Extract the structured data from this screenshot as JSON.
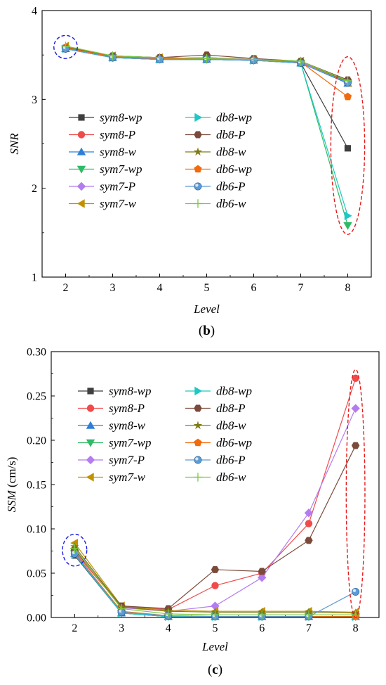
{
  "chart_data": [
    {
      "type": "line",
      "panel_label": "(b)",
      "panel_label_parts": [
        "(",
        "b",
        ")"
      ],
      "xlabel": "Level",
      "ylabel": "SNR",
      "ylabel_unit": "",
      "x": [
        2,
        3,
        4,
        5,
        6,
        7,
        8
      ],
      "xlim": [
        1.5,
        8.5
      ],
      "ylim": [
        1,
        4
      ],
      "xticks": [
        "2",
        "3",
        "4",
        "5",
        "6",
        "7",
        "8"
      ],
      "yticks": [
        "1",
        "2",
        "3",
        "4"
      ],
      "ytick_values": [
        1,
        2,
        3,
        4
      ],
      "legend_position": "center-left",
      "highlights": [
        {
          "style": "blue-dashed-ellipse",
          "center": [
            2,
            3.59
          ],
          "radius_data": [
            0.25,
            0.13
          ]
        },
        {
          "style": "red-dashed-ellipse",
          "center": [
            8,
            2.48
          ],
          "radius_data": [
            0.36,
            1.0
          ]
        }
      ],
      "series": [
        {
          "name": "sym8-wp",
          "color": "#3f3f3f",
          "marker": "square",
          "values": [
            3.57,
            3.47,
            3.45,
            3.45,
            3.44,
            3.41,
            2.45
          ]
        },
        {
          "name": "sym8-P",
          "color": "#f04a4a",
          "marker": "circle",
          "values": [
            3.57,
            3.48,
            3.46,
            3.47,
            3.45,
            3.42,
            3.2
          ]
        },
        {
          "name": "sym8-w",
          "color": "#2d7fd6",
          "marker": "triangle-up",
          "values": [
            3.57,
            3.47,
            3.45,
            3.45,
            3.44,
            3.41,
            3.18
          ]
        },
        {
          "name": "sym7-wp",
          "color": "#2fbb66",
          "marker": "triangle-down",
          "values": [
            3.57,
            3.47,
            3.45,
            3.45,
            3.44,
            3.41,
            1.58
          ]
        },
        {
          "name": "sym7-P",
          "color": "#b57bf0",
          "marker": "diamond",
          "values": [
            3.58,
            3.48,
            3.46,
            3.47,
            3.45,
            3.42,
            3.2
          ]
        },
        {
          "name": "sym7-w",
          "color": "#c29100",
          "marker": "triangle-left",
          "values": [
            3.6,
            3.49,
            3.47,
            3.46,
            3.45,
            3.43,
            3.19
          ]
        },
        {
          "name": "db8-wp",
          "color": "#1cc9c4",
          "marker": "triangle-right",
          "values": [
            3.57,
            3.47,
            3.45,
            3.45,
            3.44,
            3.41,
            1.69
          ]
        },
        {
          "name": "db8-P",
          "color": "#7b4a3a",
          "marker": "hexagon",
          "values": [
            3.58,
            3.49,
            3.47,
            3.5,
            3.46,
            3.43,
            3.22
          ]
        },
        {
          "name": "db8-w",
          "color": "#7f7a14",
          "marker": "star",
          "values": [
            3.59,
            3.49,
            3.47,
            3.46,
            3.45,
            3.43,
            3.2
          ]
        },
        {
          "name": "db6-wp",
          "color": "#f26a0c",
          "marker": "pentagon",
          "values": [
            3.58,
            3.48,
            3.46,
            3.46,
            3.45,
            3.42,
            3.03
          ]
        },
        {
          "name": "db6-P",
          "color": "#5b9bd5",
          "marker": "sphere",
          "values": [
            3.57,
            3.47,
            3.45,
            3.45,
            3.44,
            3.41,
            3.19
          ]
        },
        {
          "name": "db6-w",
          "color": "#7ac943",
          "marker": "plus",
          "values": [
            3.6,
            3.49,
            3.47,
            3.46,
            3.45,
            3.43,
            3.21
          ]
        }
      ]
    },
    {
      "type": "line",
      "panel_label": "(c)",
      "panel_label_parts": [
        "(",
        "c",
        ")"
      ],
      "xlabel": "Level",
      "ylabel": "SSM",
      "ylabel_unit": " (cm/s)",
      "x": [
        2,
        3,
        4,
        5,
        6,
        7,
        8
      ],
      "xlim": [
        1.5,
        8.5
      ],
      "ylim": [
        0,
        0.3
      ],
      "xticks": [
        "2",
        "3",
        "4",
        "5",
        "6",
        "7",
        "8"
      ],
      "yticks": [
        "0.00",
        "0.05",
        "0.10",
        "0.15",
        "0.20",
        "0.25",
        "0.30"
      ],
      "ytick_values": [
        0,
        0.05,
        0.1,
        0.15,
        0.2,
        0.25,
        0.3
      ],
      "legend_position": "upper-left",
      "highlights": [
        {
          "style": "blue-dashed-ellipse",
          "center": [
            2,
            0.076
          ],
          "radius_data": [
            0.26,
            0.018
          ]
        },
        {
          "style": "red-dashed-ellipse",
          "center": [
            8,
            0.14
          ],
          "radius_data": [
            0.2,
            0.14
          ]
        }
      ],
      "series": [
        {
          "name": "sym8-wp",
          "color": "#3f3f3f",
          "marker": "square",
          "values": [
            0.07,
            0.005,
            0.001,
            0.001,
            0.001,
            0.001,
            0.001
          ]
        },
        {
          "name": "sym8-P",
          "color": "#f04a4a",
          "marker": "circle",
          "values": [
            0.074,
            0.012,
            0.009,
            0.036,
            0.05,
            0.106,
            0.27
          ]
        },
        {
          "name": "sym8-w",
          "color": "#2d7fd6",
          "marker": "triangle-up",
          "values": [
            0.072,
            0.005,
            0.001,
            0.001,
            0.001,
            0.001,
            0.001
          ]
        },
        {
          "name": "sym7-wp",
          "color": "#2fbb66",
          "marker": "triangle-down",
          "values": [
            0.072,
            0.005,
            0.001,
            0.001,
            0.001,
            0.001,
            0.001
          ]
        },
        {
          "name": "sym7-P",
          "color": "#b57bf0",
          "marker": "diamond",
          "values": [
            0.078,
            0.011,
            0.007,
            0.013,
            0.045,
            0.118,
            0.236
          ]
        },
        {
          "name": "sym7-w",
          "color": "#c29100",
          "marker": "triangle-left",
          "values": [
            0.084,
            0.013,
            0.008,
            0.007,
            0.007,
            0.007,
            0.006
          ]
        },
        {
          "name": "db8-wp",
          "color": "#1cc9c4",
          "marker": "triangle-right",
          "values": [
            0.071,
            0.005,
            0.001,
            0.001,
            0.001,
            0.001,
            0.001
          ]
        },
        {
          "name": "db8-P",
          "color": "#7b4a3a",
          "marker": "hexagon",
          "values": [
            0.076,
            0.013,
            0.01,
            0.054,
            0.052,
            0.087,
            0.194
          ]
        },
        {
          "name": "db8-w",
          "color": "#7f7a14",
          "marker": "star",
          "values": [
            0.08,
            0.012,
            0.007,
            0.006,
            0.006,
            0.006,
            0.005
          ]
        },
        {
          "name": "db6-wp",
          "color": "#f26a0c",
          "marker": "pentagon",
          "values": [
            0.073,
            0.007,
            0.002,
            0.001,
            0.001,
            0.001,
            0.001
          ]
        },
        {
          "name": "db6-P",
          "color": "#5b9bd5",
          "marker": "sphere",
          "values": [
            0.072,
            0.006,
            0.002,
            0.001,
            0.001,
            0.001,
            0.029
          ]
        },
        {
          "name": "db6-w",
          "color": "#7ac943",
          "marker": "plus",
          "values": [
            0.078,
            0.01,
            0.004,
            0.003,
            0.003,
            0.003,
            0.003
          ]
        }
      ]
    }
  ]
}
